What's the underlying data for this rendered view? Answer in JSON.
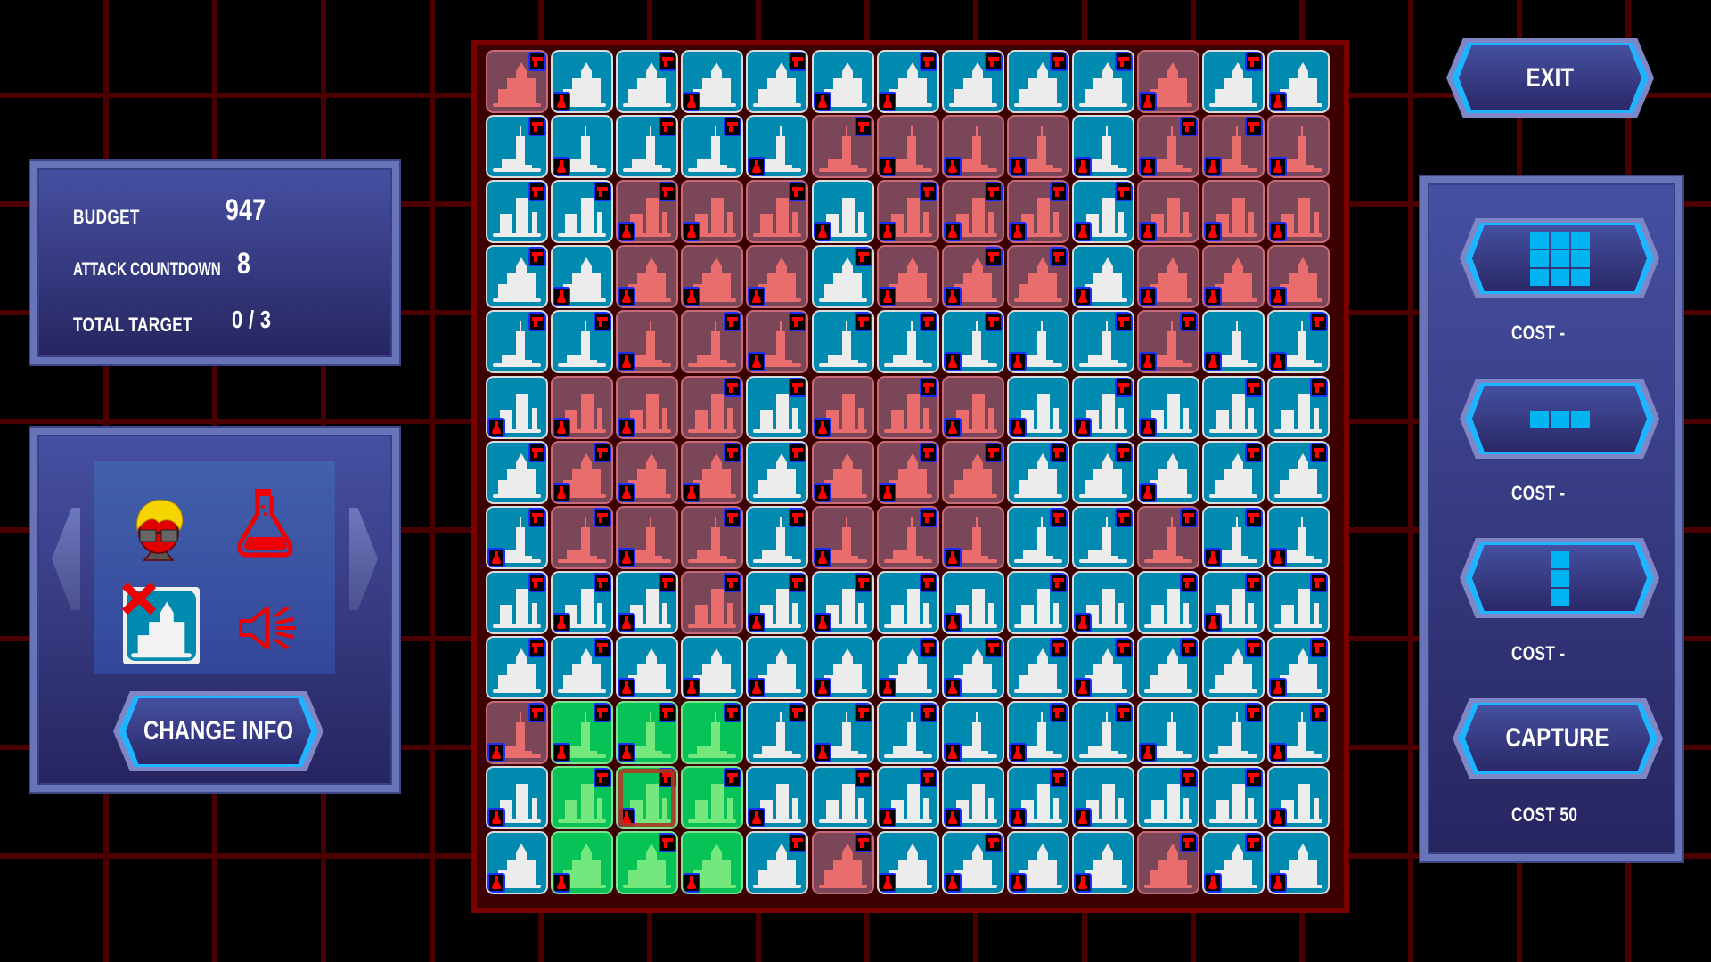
{
  "stats": {
    "budget_label": "BUDGET",
    "budget_value": "947",
    "countdown_label": "ATTACK COUNTDOWN",
    "countdown_value": "8",
    "target_label": "TOTAL TARGET",
    "target_value": "0 / 3"
  },
  "info": {
    "icons": [
      "hacker-avatar-icon",
      "flask-icon",
      "building-destroyed-icon",
      "megaphone-icon"
    ],
    "change_label": "CHANGE INFO"
  },
  "exit_label": "EXIT",
  "tools": [
    {
      "shape": "3x3",
      "cost": "COST -"
    },
    {
      "shape": "1x3-horizontal",
      "cost": "COST -"
    },
    {
      "shape": "3x1-vertical",
      "cost": "COST -"
    },
    {
      "label": "CAPTURE",
      "cost": "COST 50"
    }
  ],
  "colors": {
    "blue": "#018aaf",
    "red": "#7b4758",
    "green": "#06c257",
    "accent": "#00b4f2"
  },
  "board": {
    "legend": {
      "B": "blue",
      "R": "red",
      "G": "green"
    },
    "rows": [
      "RBBBBBBBBBRBB",
      "BBBBBRRRRBRRR",
      "BBRRRBRRRBRRR",
      "BBRRRBRRRBRRR",
      "BBRRRBBBBBRBB",
      "BRRRBRRRBBBBB",
      "BRRRBRRRBBBBB",
      "BRRRBRRRBBRBB",
      "BBBRBBBBBBBBB",
      "BBBBBBBBBBBBB",
      "RGGGBBBBBBBBB",
      "BGGGBBBBBBBBB",
      "BGGGBRBBBBRBB"
    ],
    "guns": [
      [
        0,
        2,
        4,
        6,
        7,
        8,
        9,
        11
      ],
      [
        0,
        2,
        3,
        5,
        10,
        11
      ],
      [
        0,
        1,
        2,
        4,
        6,
        7,
        8,
        9
      ],
      [
        0,
        5,
        7,
        8
      ],
      [
        0,
        1,
        3,
        4,
        5,
        6,
        7,
        9,
        10,
        12
      ],
      [
        3,
        4,
        6,
        9,
        11,
        12
      ],
      [
        0,
        1,
        3,
        4,
        6,
        7,
        8,
        9,
        11,
        12
      ],
      [
        0,
        1,
        3,
        4,
        6,
        8,
        9,
        10,
        11
      ],
      [
        0,
        1,
        2,
        3,
        4,
        5,
        6,
        8,
        10,
        11,
        12
      ],
      [
        0,
        1,
        6,
        7,
        8,
        9,
        10,
        11,
        12
      ],
      [
        0,
        1,
        2,
        3,
        4,
        5,
        6,
        8,
        9,
        11,
        12
      ],
      [
        1,
        2,
        3,
        5,
        6,
        8,
        10,
        11
      ],
      [
        2,
        4,
        5,
        7,
        10,
        11
      ]
    ],
    "flasks": [
      [
        1,
        3,
        5,
        6,
        10,
        12
      ],
      [
        1,
        4,
        6,
        7,
        8,
        9,
        10,
        11,
        12
      ],
      [
        2,
        3,
        5,
        6,
        7,
        8,
        9,
        10,
        11,
        12
      ],
      [
        1,
        2,
        3,
        4,
        6,
        7,
        9,
        10,
        11,
        12
      ],
      [
        2,
        4,
        7,
        8,
        10,
        11,
        12
      ],
      [
        0,
        1,
        2,
        5,
        7,
        8,
        9,
        10
      ],
      [
        1,
        2,
        3,
        5,
        6,
        10
      ],
      [
        0,
        2,
        5,
        7,
        11,
        12
      ],
      [
        1,
        2,
        4,
        5,
        7,
        9,
        11
      ],
      [
        2,
        3,
        4,
        5,
        6,
        7,
        9,
        12
      ],
      [
        0,
        1,
        2,
        5,
        7,
        8,
        10,
        12
      ],
      [
        0,
        2,
        4,
        6,
        7,
        8,
        9,
        12
      ],
      [
        0,
        1,
        3,
        6,
        7,
        8,
        9,
        11,
        12
      ]
    ],
    "selected": {
      "row": 11,
      "col": 2
    }
  }
}
